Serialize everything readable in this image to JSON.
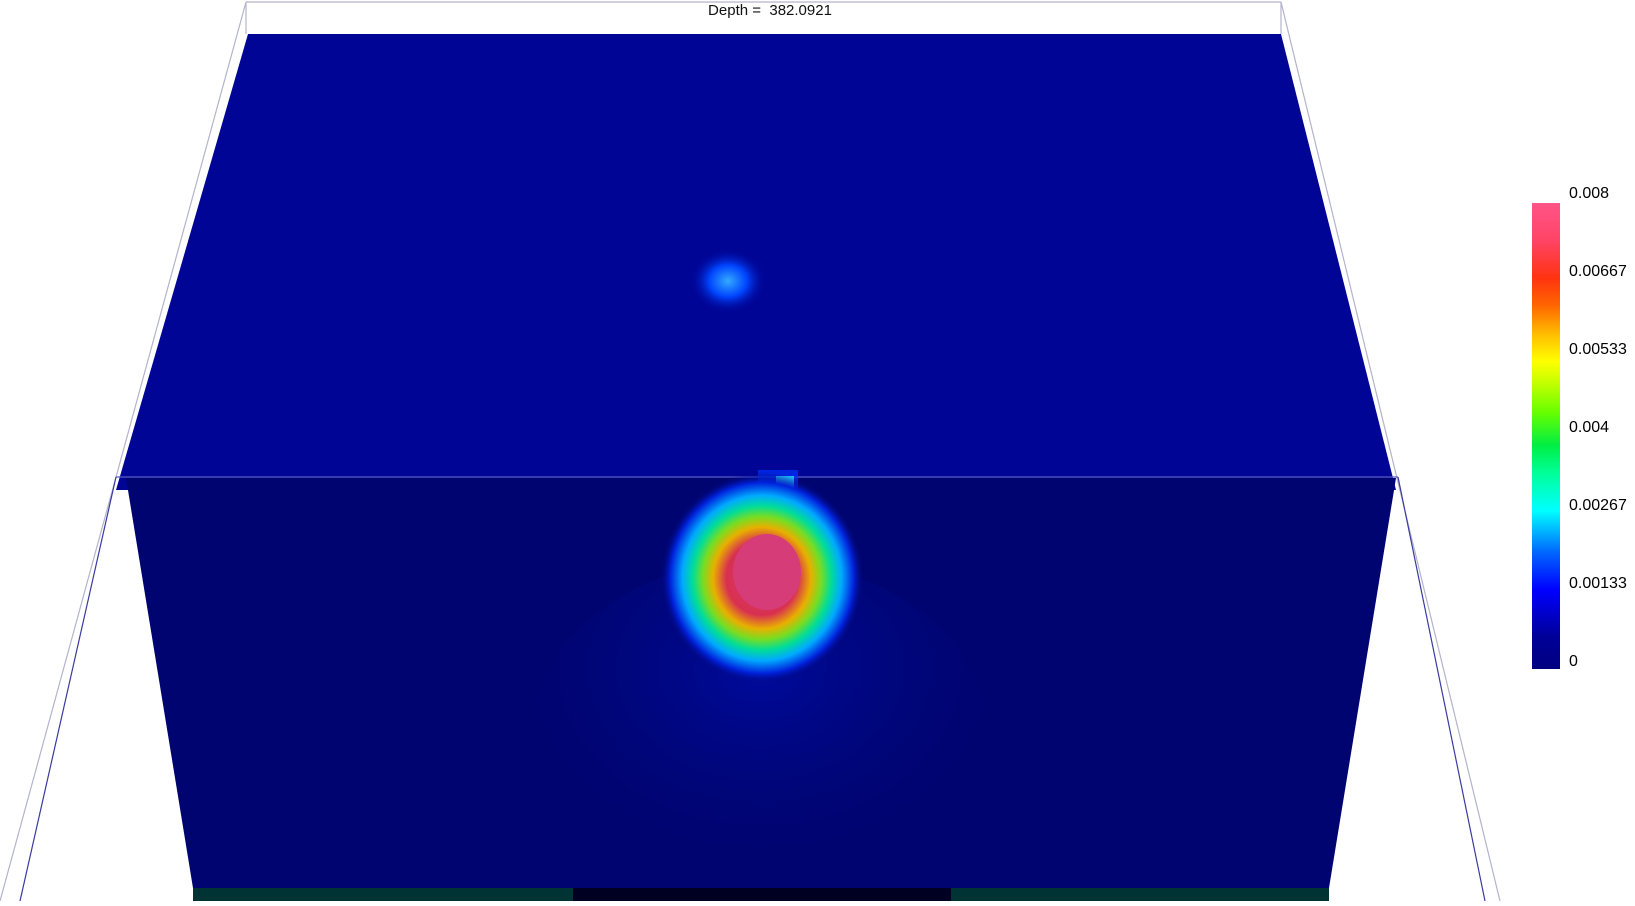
{
  "view": {
    "title_prefix": "Depth =",
    "depth_value": "382.0921"
  },
  "colorbar": {
    "ticks": [
      "0.008",
      "0.00667",
      "0.00533",
      "0.004",
      "0.00267",
      "0.00133",
      "0"
    ],
    "range": [
      0,
      0.008
    ],
    "colormap": "jet-like (dark blue to pink)",
    "colors": {
      "min": "#000080",
      "low": "#0000ff",
      "mid_low": "#00ffff",
      "mid": "#00ff00",
      "mid_high": "#ffff00",
      "high": "#ff3300",
      "max": "#ff5588"
    }
  },
  "scene": {
    "background_color": "#ffffff",
    "top_face_color": "#000596",
    "front_face_color": "#000470",
    "bottom_strip_colors": [
      "#003333",
      "#000022"
    ],
    "frame_color": "#b3b3cc"
  }
}
